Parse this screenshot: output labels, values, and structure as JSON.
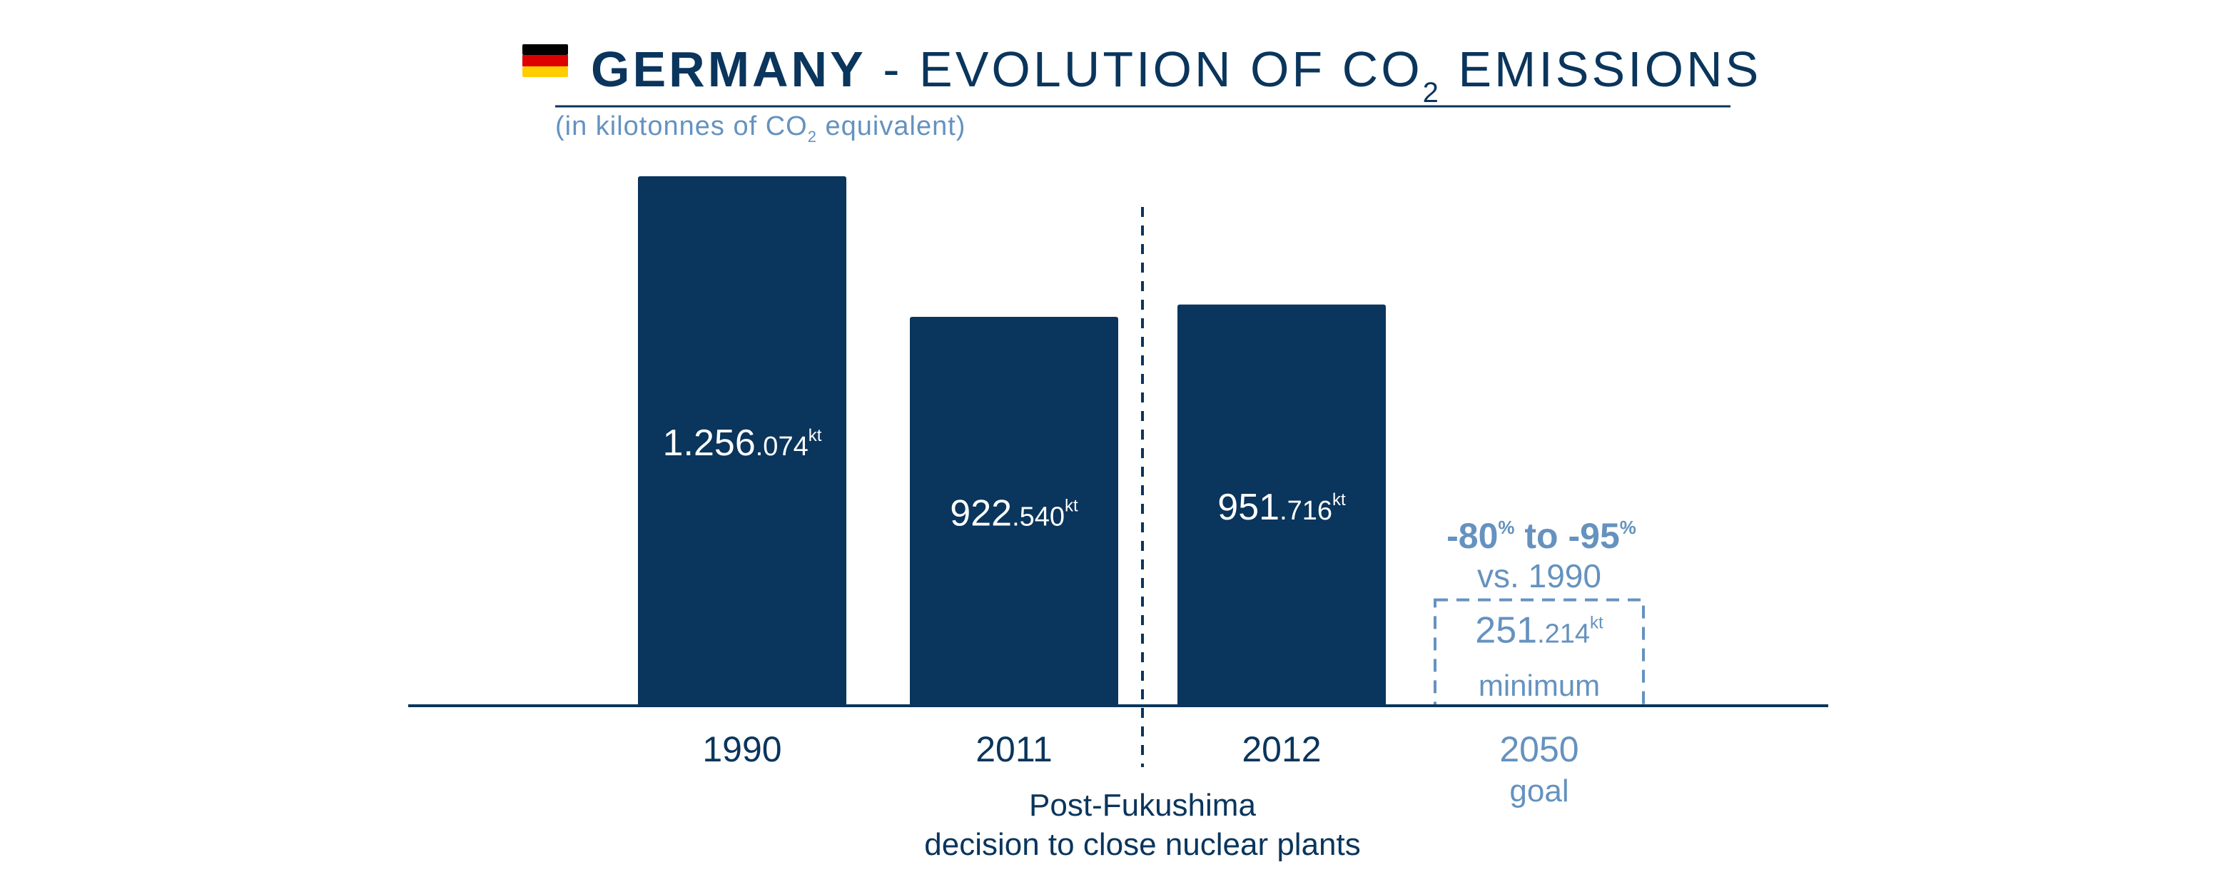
{
  "title": {
    "country": "GERMANY",
    "separator": " - ",
    "main_prefix": "EVOLUTION OF CO",
    "main_sub": "2",
    "main_suffix": " EMISSIONS",
    "flag_icon": "germany-flag-icon",
    "flag_colors": [
      "#000000",
      "#DD0000",
      "#FFCE00"
    ]
  },
  "subtitle": {
    "prefix": "(in kilotonnes of CO",
    "sub": "2",
    "suffix": " equivalent)"
  },
  "colors": {
    "dark": "#0a355c",
    "light": "#6592bf",
    "background": "#ffffff"
  },
  "chart_data": {
    "type": "bar",
    "categories": [
      "1990",
      "2011",
      "2012",
      "2050"
    ],
    "values": [
      1256074,
      922540,
      951716,
      251214
    ],
    "units": "kt",
    "ylim": [
      0,
      1256074
    ],
    "grid": false,
    "legend": "none",
    "data_labels": [
      {
        "main": "1.256",
        "small": ".074",
        "unit": "kt"
      },
      {
        "main": "922",
        "small": ".540",
        "unit": "kt"
      },
      {
        "main": "951",
        "small": ".716",
        "unit": "kt"
      },
      {
        "main": "251",
        "small": ".214",
        "unit": "kt"
      }
    ],
    "goal": {
      "category": "2050",
      "caption": "goal",
      "box_label": "minimum",
      "reduction_from": "-80",
      "reduction_to": "-95",
      "percent": "%",
      "joiner": " to ",
      "versus": "vs. 1990"
    },
    "divider_annotation": {
      "between": [
        "2011",
        "2012"
      ],
      "line1": "Post-Fukushima",
      "line2": "decision to close nuclear plants"
    }
  }
}
